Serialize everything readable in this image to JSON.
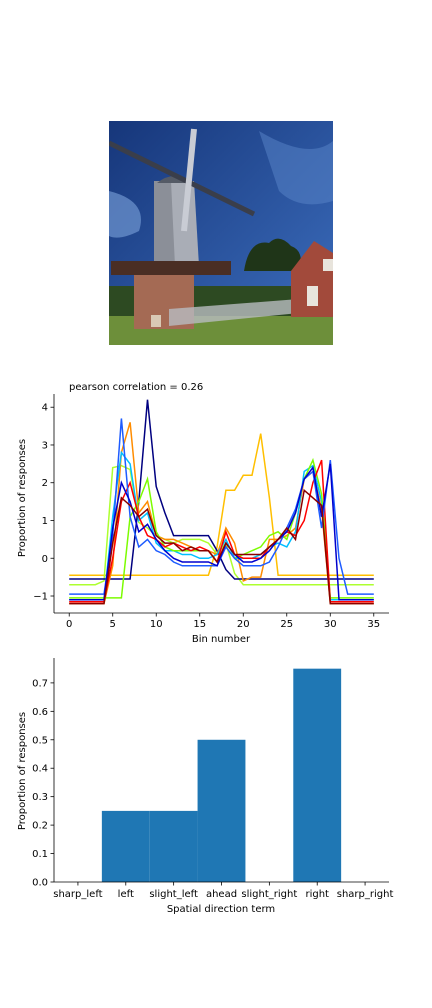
{
  "image_icon": "windmill-photo",
  "chart_data": [
    {
      "type": "line",
      "title": "pearson correlation = 0.26",
      "xlabel": "Bin number",
      "ylabel": "Proportion of responses",
      "xlim": [
        -1.75,
        36.75
      ],
      "ylim": [
        -1.45,
        4.35
      ],
      "xticks": [
        0,
        5,
        10,
        15,
        20,
        25,
        30,
        35
      ],
      "yticks": [
        -1,
        0,
        1,
        2,
        3,
        4
      ],
      "grid": false,
      "x": [
        0,
        1,
        2,
        3,
        4,
        5,
        6,
        7,
        8,
        9,
        10,
        11,
        12,
        13,
        14,
        15,
        16,
        17,
        18,
        19,
        20,
        21,
        22,
        23,
        24,
        25,
        26,
        27,
        28,
        29,
        30,
        31,
        32,
        33,
        34,
        35
      ],
      "series": [
        {
          "color": "#ffbf00",
          "values": [
            -0.45,
            -0.45,
            -0.45,
            -0.45,
            -0.45,
            -0.45,
            -0.45,
            -0.45,
            -0.45,
            -0.45,
            -0.45,
            -0.45,
            -0.45,
            -0.45,
            -0.45,
            -0.45,
            -0.45,
            0.3,
            1.8,
            1.8,
            2.2,
            2.2,
            3.3,
            1.6,
            -0.45,
            -0.45,
            -0.45,
            -0.45,
            -0.45,
            -0.45,
            -0.45,
            -0.45,
            -0.45,
            -0.45,
            -0.45,
            -0.45
          ]
        },
        {
          "color": "#adff2f",
          "values": [
            -0.7,
            -0.7,
            -0.7,
            -0.7,
            -0.6,
            2.4,
            2.45,
            2.35,
            0.95,
            0.8,
            0.6,
            0.5,
            0.4,
            0.5,
            0.5,
            0.5,
            0.4,
            0.1,
            0.4,
            -0.4,
            -0.7,
            -0.7,
            -0.7,
            -0.7,
            -0.7,
            -0.7,
            -0.7,
            -0.7,
            -0.7,
            -0.7,
            -0.7,
            -0.7,
            -0.7,
            -0.7,
            -0.7,
            -0.7
          ]
        },
        {
          "color": "#000080",
          "values": [
            -0.55,
            -0.55,
            -0.55,
            -0.55,
            -0.55,
            -0.55,
            -0.55,
            -0.55,
            1.5,
            4.2,
            1.9,
            1.2,
            0.6,
            0.6,
            0.6,
            0.6,
            0.6,
            0.2,
            -0.3,
            -0.55,
            -0.55,
            -0.55,
            -0.55,
            -0.55,
            -0.55,
            -0.55,
            -0.55,
            -0.55,
            -0.55,
            -0.55,
            -0.55,
            -0.55,
            -0.55,
            -0.55,
            -0.55,
            -0.55
          ]
        },
        {
          "color": "#ff8c00",
          "values": [
            -1.2,
            -1.2,
            -1.2,
            -1.2,
            -1.2,
            -0.2,
            2.8,
            3.6,
            1.2,
            1.5,
            0.6,
            0.5,
            0.5,
            0.4,
            0.3,
            0.2,
            0.2,
            0.1,
            0.8,
            0.4,
            -0.6,
            -0.5,
            -0.5,
            0.5,
            0.5,
            0.6,
            0.8,
            2.1,
            2.3,
            1.3,
            -1.2,
            -1.2,
            -1.2,
            -1.2,
            -1.2,
            -1.2
          ]
        },
        {
          "color": "#00bfff",
          "values": [
            -1.1,
            -1.1,
            -1.1,
            -1.1,
            -1.1,
            1.1,
            2.8,
            2.5,
            1.0,
            1.2,
            0.4,
            0.2,
            0.2,
            0.1,
            0.1,
            0.0,
            0.0,
            0.1,
            0.5,
            0.0,
            0.0,
            0.0,
            0.1,
            0.3,
            0.4,
            0.3,
            0.7,
            2.3,
            2.45,
            1.5,
            -1.1,
            -1.1,
            -1.1,
            -1.1,
            -1.1,
            -1.1
          ]
        },
        {
          "color": "#7cfc00",
          "values": [
            -1.05,
            -1.05,
            -1.05,
            -1.05,
            -1.05,
            -1.05,
            -1.05,
            1.1,
            1.5,
            2.1,
            0.7,
            0.3,
            0.2,
            0.2,
            0.2,
            0.2,
            0.2,
            -0.1,
            0.3,
            0.0,
            0.1,
            0.2,
            0.3,
            0.6,
            0.7,
            0.5,
            1.2,
            2.1,
            2.6,
            1.7,
            -1.05,
            -1.05,
            -1.05,
            -1.05,
            -1.05,
            -1.05
          ]
        },
        {
          "color": "#ff0000",
          "values": [
            -1.15,
            -1.15,
            -1.15,
            -1.15,
            -1.15,
            0.0,
            1.5,
            2.0,
            1.1,
            0.6,
            0.5,
            0.3,
            0.4,
            0.3,
            0.2,
            0.3,
            0.2,
            -0.1,
            0.7,
            0.1,
            0.0,
            0.0,
            0.0,
            0.3,
            0.5,
            0.7,
            0.6,
            1.0,
            2.0,
            2.6,
            -1.15,
            -1.15,
            -1.15,
            -1.15,
            -1.15,
            -1.15
          ]
        },
        {
          "color": "#1e5cff",
          "values": [
            -0.95,
            -0.95,
            -0.95,
            -0.95,
            -0.95,
            0.6,
            3.7,
            1.1,
            0.3,
            0.5,
            0.2,
            0.1,
            -0.1,
            -0.2,
            -0.2,
            -0.2,
            -0.2,
            -0.2,
            0.3,
            0.0,
            -0.2,
            -0.2,
            -0.2,
            -0.1,
            0.3,
            0.8,
            1.3,
            2.1,
            2.3,
            0.8,
            2.6,
            0.0,
            -0.95,
            -0.95,
            -0.95,
            -0.95
          ]
        },
        {
          "color": "#0000cd",
          "values": [
            -1.1,
            -1.1,
            -1.1,
            -1.1,
            -1.1,
            0.8,
            2.0,
            1.5,
            0.7,
            0.9,
            0.5,
            0.2,
            0.0,
            -0.1,
            -0.1,
            -0.1,
            -0.1,
            -0.2,
            0.4,
            0.1,
            -0.1,
            -0.1,
            0.0,
            0.2,
            0.5,
            0.7,
            1.2,
            2.1,
            2.4,
            1.1,
            2.5,
            -1.1,
            -1.1,
            -1.1,
            -1.1,
            -1.1
          ]
        },
        {
          "color": "#8b0000",
          "values": [
            -1.2,
            -1.2,
            -1.2,
            -1.2,
            -1.2,
            0.4,
            1.6,
            1.4,
            1.1,
            1.3,
            0.6,
            0.4,
            0.4,
            0.2,
            0.3,
            0.2,
            0.2,
            -0.1,
            0.4,
            0.1,
            0.1,
            0.1,
            0.1,
            0.3,
            0.5,
            0.8,
            0.5,
            1.8,
            1.6,
            1.4,
            -1.2,
            -1.2,
            -1.2,
            -1.2,
            -1.2,
            -1.2
          ]
        }
      ]
    },
    {
      "type": "bar",
      "xlabel": "Spatial direction term",
      "ylabel": "Proportion of responses",
      "categories": [
        "sharp_left",
        "left",
        "slight_left",
        "ahead",
        "slight_right",
        "right",
        "sharp_right"
      ],
      "values": [
        0.0,
        0.25,
        0.25,
        0.5,
        0.0,
        0.75,
        0.0
      ],
      "ylim": [
        0,
        0.7875
      ],
      "yticks": [
        0.0,
        0.1,
        0.2,
        0.3,
        0.4,
        0.5,
        0.6,
        0.7
      ],
      "ytick_labels": [
        "0.0",
        "0.1",
        "0.2",
        "0.3",
        "0.4",
        "0.5",
        "0.6",
        "0.7"
      ],
      "bar_color": "#1f77b4",
      "grid": false
    }
  ]
}
